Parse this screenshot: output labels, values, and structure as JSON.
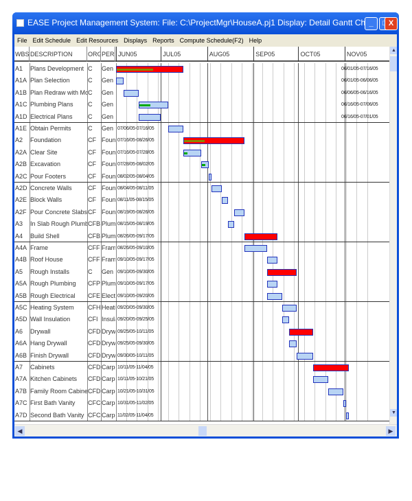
{
  "window": {
    "title": "EASE Project Management System:  File:  C:\\ProjectMgr\\HouseA.pj1  Display: Detail Gantt Chart",
    "buttons": {
      "minimize": "_",
      "maximize": "□",
      "close": "X"
    }
  },
  "menu": [
    "File",
    "Edit Schedule",
    "Edit Resources",
    "Displays",
    "Reports",
    "Compute Schedule(F2)",
    "Help"
  ],
  "columns": {
    "wbs": "WBS",
    "description": "DESCRIPTION",
    "org": "ORG",
    "pers": "PERS"
  },
  "months": [
    {
      "label": "JUN05",
      "date": "2005-06-01"
    },
    {
      "label": "JUL05",
      "date": "2005-07-01"
    },
    {
      "label": "AUG05",
      "date": "2005-08-01"
    },
    {
      "label": "SEP05",
      "date": "2005-09-01"
    },
    {
      "label": "OCT05",
      "date": "2005-10-01"
    },
    {
      "label": "NOV05",
      "date": "2005-11-01"
    }
  ],
  "colors": {
    "summary_bar": "#ff0000",
    "task_bar": "#b8d4f4",
    "bar_border": "#2233bb",
    "progress": "#00aa00"
  },
  "tasks": [
    {
      "wbs": "A1",
      "desc": "Plans Development",
      "org": "C",
      "pers": "Gen C",
      "dates": "06/01/05-07/16/05",
      "type": "summary",
      "progress": 0.55
    },
    {
      "wbs": "A1A",
      "desc": "Plan Selection",
      "org": "C",
      "pers": "Gen C",
      "dates": "06/01/05-06/06/05",
      "type": "task",
      "progress": 0
    },
    {
      "wbs": "A1B",
      "desc": "Plan Redraw with Modifications",
      "org": "C",
      "pers": "Gen C",
      "dates": "06/06/05-06/16/05",
      "type": "task",
      "progress": 0
    },
    {
      "wbs": "A1C",
      "desc": "Plumbing Plans",
      "org": "C",
      "pers": "Gen C",
      "dates": "06/16/05-07/06/05",
      "type": "task",
      "progress": 0.4
    },
    {
      "wbs": "A1D",
      "desc": "Electrical Plans",
      "org": "C",
      "pers": "Gen C",
      "dates": "06/16/05-07/01/05",
      "type": "task",
      "progress": 0
    },
    {
      "wbs": "A1E",
      "desc": "Obtain Permits",
      "org": "C",
      "pers": "Gen C",
      "dates": "07/06/05-07/16/05",
      "type": "task",
      "progress": 0
    },
    {
      "wbs": "A2",
      "desc": "Foundation",
      "org": "CF",
      "pers": "Found",
      "dates": "07/16/05-08/26/05",
      "type": "summary",
      "progress": 0.35
    },
    {
      "wbs": "A2A",
      "desc": "Clear Site",
      "org": "CF",
      "pers": "Found",
      "dates": "07/16/05-07/28/05",
      "type": "task",
      "progress": 0.2
    },
    {
      "wbs": "A2B",
      "desc": "Excavation",
      "org": "CF",
      "pers": "Found",
      "dates": "07/28/05-08/02/05",
      "type": "task",
      "progress": 0.6
    },
    {
      "wbs": "A2C",
      "desc": "Pour Footers",
      "org": "CF",
      "pers": "Found",
      "dates": "08/02/05-08/04/05",
      "type": "task",
      "progress": 0
    },
    {
      "wbs": "A2D",
      "desc": "Concrete Walls",
      "org": "CF",
      "pers": "Found",
      "dates": "08/04/05-08/11/05",
      "type": "task",
      "progress": 0
    },
    {
      "wbs": "A2E",
      "desc": "Block Walls",
      "org": "CF",
      "pers": "Found",
      "dates": "08/11/05-08/15/05",
      "type": "task",
      "progress": 0
    },
    {
      "wbs": "A2F",
      "desc": "Pour Concrete Slabs",
      "org": "CF",
      "pers": "Found",
      "dates": "08/19/05-08/26/05",
      "type": "task",
      "progress": 0
    },
    {
      "wbs": "A3",
      "desc": "In Slab Rough Plumbing",
      "org": "CFB",
      "pers": "Plumb",
      "dates": "08/15/05-08/19/05",
      "type": "task",
      "progress": 0
    },
    {
      "wbs": "A4",
      "desc": "Build Shell",
      "org": "CFB",
      "pers": "Plumb",
      "dates": "08/26/05-09/17/05",
      "type": "summary",
      "progress": 0
    },
    {
      "wbs": "A4A",
      "desc": "Frame",
      "org": "CFF",
      "pers": "Frame",
      "dates": "08/26/05-09/10/05",
      "type": "task",
      "progress": 0
    },
    {
      "wbs": "A4B",
      "desc": "Roof House",
      "org": "CFF",
      "pers": "Frame",
      "dates": "09/10/05-09/17/05",
      "type": "task",
      "progress": 0
    },
    {
      "wbs": "A5",
      "desc": "Rough Installs",
      "org": "C",
      "pers": "Gen C",
      "dates": "09/10/05-09/30/05",
      "type": "summary",
      "progress": 0
    },
    {
      "wbs": "A5A",
      "desc": "Rough Plumbing",
      "org": "CFP",
      "pers": "Plumb",
      "dates": "09/10/05-09/17/05",
      "type": "task",
      "progress": 0
    },
    {
      "wbs": "A5B",
      "desc": "Rough Electrical",
      "org": "CFE",
      "pers": "Electr",
      "dates": "09/10/05-09/20/05",
      "type": "task",
      "progress": 0
    },
    {
      "wbs": "A5C",
      "desc": "Heating System",
      "org": "CFH",
      "pers": "Heatin",
      "dates": "09/20/05-09/30/05",
      "type": "task",
      "progress": 0
    },
    {
      "wbs": "A5D",
      "desc": "Wall Insulation",
      "org": "CFI",
      "pers": "Insula",
      "dates": "09/20/05-09/25/05",
      "type": "task",
      "progress": 0
    },
    {
      "wbs": "A6",
      "desc": "Drywall",
      "org": "CFD",
      "pers": "Drywa",
      "dates": "09/25/05-10/11/05",
      "type": "summary",
      "progress": 0
    },
    {
      "wbs": "A6A",
      "desc": "Hang Drywall",
      "org": "CFD",
      "pers": "Drywa",
      "dates": "09/25/05-09/30/05",
      "type": "task",
      "progress": 0
    },
    {
      "wbs": "A6B",
      "desc": "Finish Drywall",
      "org": "CFD",
      "pers": "Drywa",
      "dates": "09/30/05-10/11/05",
      "type": "task",
      "progress": 0
    },
    {
      "wbs": "A7",
      "desc": "Cabinets",
      "org": "CFD",
      "pers": "Carpe",
      "dates": "10/11/05-11/04/05",
      "type": "summary",
      "progress": 0
    },
    {
      "wbs": "A7A",
      "desc": "Kitchen Cabinets",
      "org": "CFD",
      "pers": "Carpe",
      "dates": "10/11/05-10/21/05",
      "type": "task",
      "progress": 0
    },
    {
      "wbs": "A7B",
      "desc": "Family Room Cabinets",
      "org": "CFD",
      "pers": "Carpe",
      "dates": "10/21/05-10/31/05",
      "type": "task",
      "progress": 0
    },
    {
      "wbs": "A7C",
      "desc": "First Bath Vanity",
      "org": "CFC",
      "pers": "Carpe",
      "dates": "10/31/05-11/02/05",
      "type": "task",
      "progress": 0
    },
    {
      "wbs": "A7D",
      "desc": "Second Bath Vanity",
      "org": "CFC",
      "pers": "Carpe",
      "dates": "11/02/05-11/04/05",
      "type": "task",
      "progress": 0
    }
  ]
}
